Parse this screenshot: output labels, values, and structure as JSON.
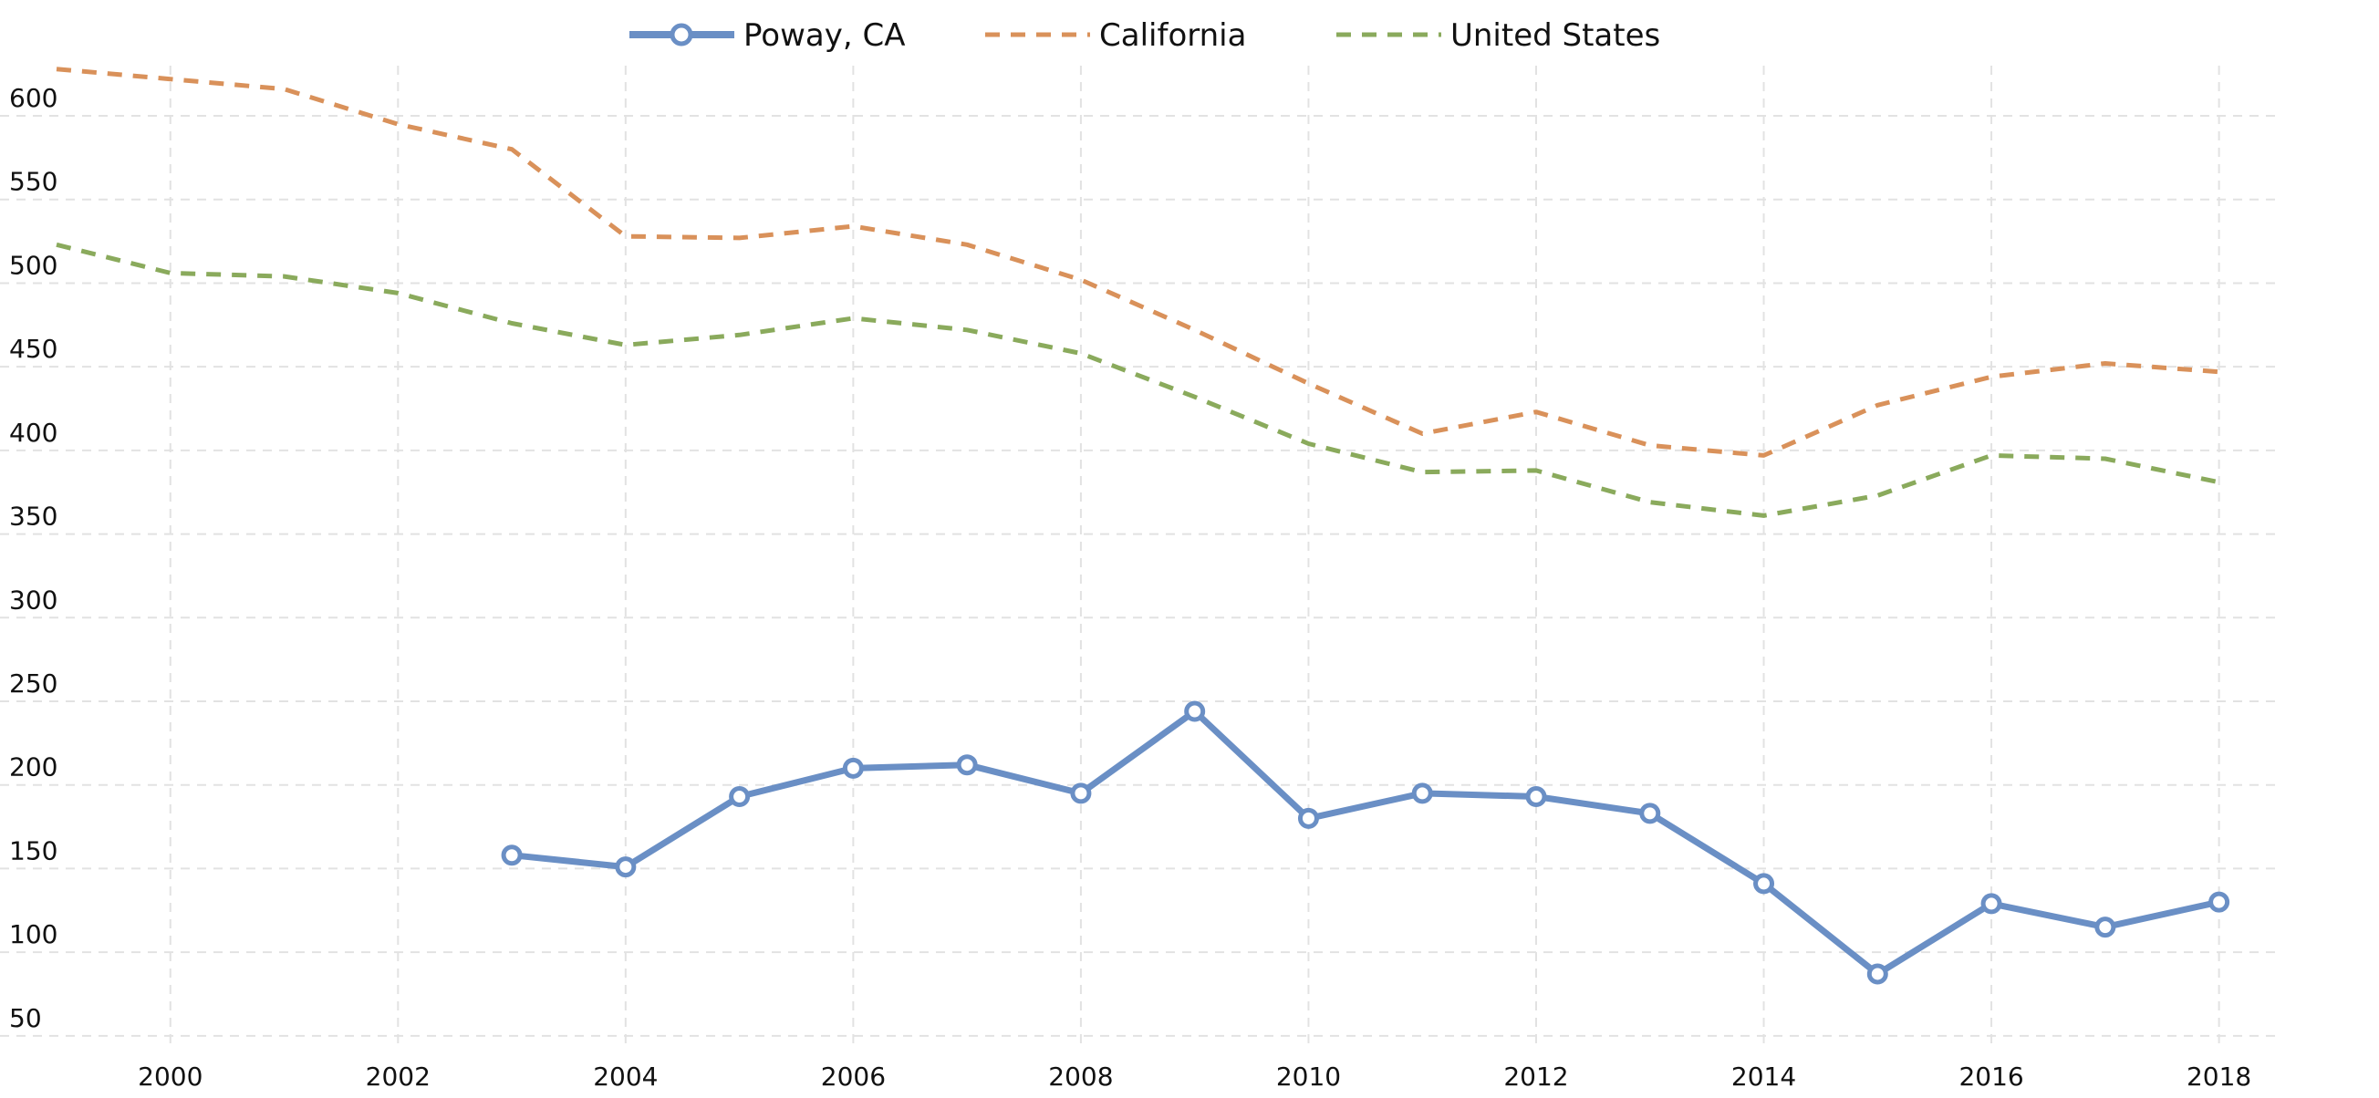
{
  "chart_data": {
    "type": "line",
    "title": "",
    "xlabel": "",
    "ylabel": "",
    "xlim": [
      1999,
      2018.5
    ],
    "ylim": [
      45,
      630
    ],
    "x_ticks": [
      2000,
      2002,
      2004,
      2006,
      2008,
      2010,
      2012,
      2014,
      2016,
      2018
    ],
    "y_ticks": [
      50,
      100,
      150,
      200,
      250,
      300,
      350,
      400,
      450,
      500,
      550,
      600
    ],
    "x_tick_labels": [
      "2000",
      "2002",
      "2004",
      "2006",
      "2008",
      "2010",
      "2012",
      "2014",
      "2016",
      "2018"
    ],
    "y_tick_labels": [
      "50",
      "100",
      "150",
      "200",
      "250",
      "300",
      "350",
      "400",
      "450",
      "500",
      "550",
      "600"
    ],
    "grid": true,
    "legend_position": "top-center",
    "series": [
      {
        "name": "Poway, CA",
        "style": "solid-with-markers",
        "color": "#6a8fc5",
        "points": [
          {
            "x": 2003,
            "y": 158
          },
          {
            "x": 2004,
            "y": 151
          },
          {
            "x": 2005,
            "y": 193
          },
          {
            "x": 2006,
            "y": 210
          },
          {
            "x": 2007,
            "y": 212
          },
          {
            "x": 2008,
            "y": 195
          },
          {
            "x": 2009,
            "y": 244
          },
          {
            "x": 2010,
            "y": 180
          },
          {
            "x": 2011,
            "y": 195
          },
          {
            "x": 2012,
            "y": 193
          },
          {
            "x": 2013,
            "y": 183
          },
          {
            "x": 2014,
            "y": 141
          },
          {
            "x": 2015,
            "y": 87
          },
          {
            "x": 2016,
            "y": 129
          },
          {
            "x": 2017,
            "y": 115
          },
          {
            "x": 2018,
            "y": 130
          }
        ]
      },
      {
        "name": "California",
        "style": "dashed",
        "color": "#d9915a",
        "points": [
          {
            "x": 1999,
            "y": 628
          },
          {
            "x": 2000,
            "y": 622
          },
          {
            "x": 2001,
            "y": 616
          },
          {
            "x": 2002,
            "y": 595
          },
          {
            "x": 2003,
            "y": 580
          },
          {
            "x": 2004,
            "y": 528
          },
          {
            "x": 2005,
            "y": 527
          },
          {
            "x": 2006,
            "y": 534
          },
          {
            "x": 2007,
            "y": 523
          },
          {
            "x": 2008,
            "y": 502
          },
          {
            "x": 2009,
            "y": 472
          },
          {
            "x": 2010,
            "y": 440
          },
          {
            "x": 2011,
            "y": 410
          },
          {
            "x": 2012,
            "y": 423
          },
          {
            "x": 2013,
            "y": 403
          },
          {
            "x": 2014,
            "y": 397
          },
          {
            "x": 2015,
            "y": 427
          },
          {
            "x": 2016,
            "y": 444
          },
          {
            "x": 2017,
            "y": 452
          },
          {
            "x": 2018,
            "y": 447
          }
        ]
      },
      {
        "name": "United States",
        "style": "dashed",
        "color": "#8aaa5c",
        "points": [
          {
            "x": 1999,
            "y": 523
          },
          {
            "x": 2000,
            "y": 506
          },
          {
            "x": 2001,
            "y": 504
          },
          {
            "x": 2002,
            "y": 494
          },
          {
            "x": 2003,
            "y": 476
          },
          {
            "x": 2004,
            "y": 463
          },
          {
            "x": 2005,
            "y": 469
          },
          {
            "x": 2006,
            "y": 479
          },
          {
            "x": 2007,
            "y": 472
          },
          {
            "x": 2008,
            "y": 458
          },
          {
            "x": 2009,
            "y": 432
          },
          {
            "x": 2010,
            "y": 404
          },
          {
            "x": 2011,
            "y": 387
          },
          {
            "x": 2012,
            "y": 388
          },
          {
            "x": 2013,
            "y": 369
          },
          {
            "x": 2014,
            "y": 361
          },
          {
            "x": 2015,
            "y": 373
          },
          {
            "x": 2016,
            "y": 397
          },
          {
            "x": 2017,
            "y": 395
          },
          {
            "x": 2018,
            "y": 381
          }
        ]
      }
    ]
  }
}
